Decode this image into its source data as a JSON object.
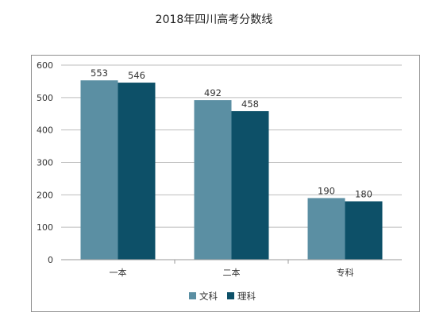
{
  "chart_data": {
    "type": "bar",
    "title": "2018年四川高考分数线",
    "xlabel": "",
    "ylabel": "",
    "categories": [
      "一本",
      "二本",
      "专科"
    ],
    "series": [
      {
        "name": "文科",
        "values": [
          553,
          492,
          190
        ],
        "color": "#5b8fa3"
      },
      {
        "name": "理科",
        "values": [
          546,
          458,
          180
        ],
        "color": "#0d5068"
      }
    ],
    "ylim": [
      0,
      600
    ],
    "yticks": [
      0,
      100,
      200,
      300,
      400,
      500,
      600
    ],
    "grid": true,
    "legend_position": "bottom",
    "colors": {
      "grid": "#bdbdbd",
      "axis": "#9a9a9a",
      "text": "#333333"
    }
  }
}
